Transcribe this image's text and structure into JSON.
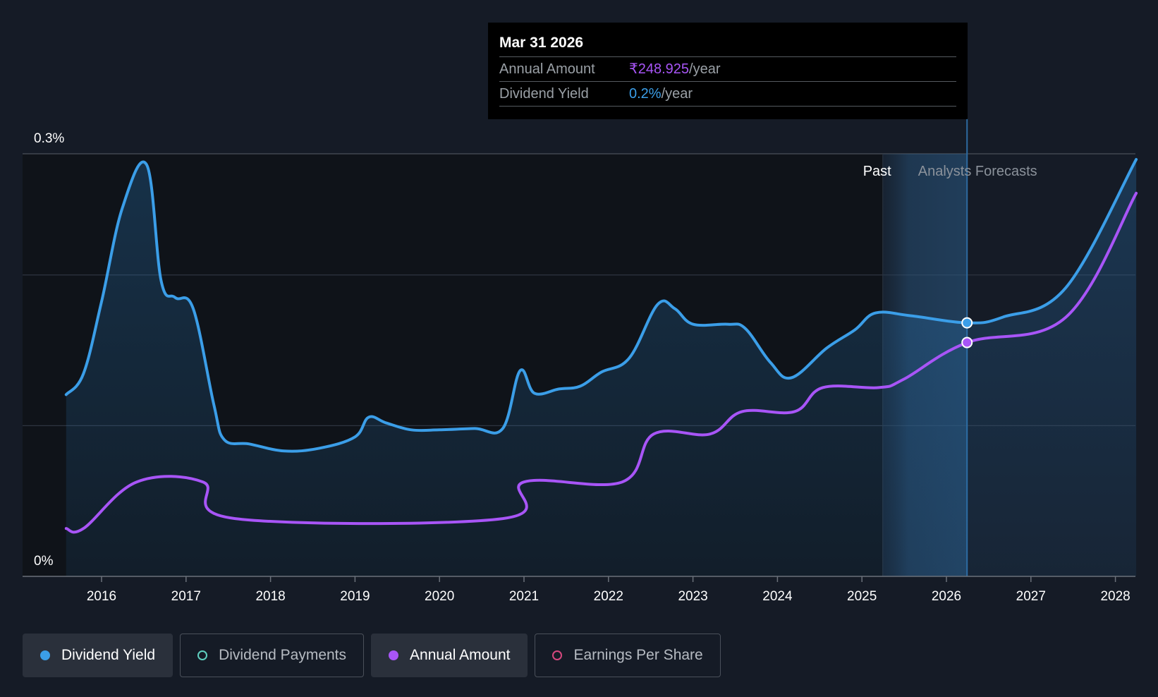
{
  "tooltip": {
    "date": "Mar 31 2026",
    "annual_amount_label": "Annual Amount",
    "annual_amount_value": "₹248.925",
    "annual_amount_unit": "/year",
    "dividend_yield_label": "Dividend Yield",
    "dividend_yield_value": "0.2%",
    "dividend_yield_unit": "/year"
  },
  "regions": {
    "past_label": "Past",
    "forecast_label": "Analysts Forecasts"
  },
  "legend": [
    {
      "label": "Dividend Yield",
      "color": "#3b9ee8",
      "active": true,
      "filled": true
    },
    {
      "label": "Dividend Payments",
      "color": "#5fd0c0",
      "active": false,
      "filled": false
    },
    {
      "label": "Annual Amount",
      "color": "#a855f7",
      "active": true,
      "filled": true
    },
    {
      "label": "Earnings Per Share",
      "color": "#d6487e",
      "active": false,
      "filled": false
    }
  ],
  "chart_data": {
    "type": "line",
    "x_axis": {
      "type": "time",
      "min": "2015-01-01",
      "max": "2028-03-31",
      "ticks": [
        "2016",
        "2017",
        "2018",
        "2019",
        "2020",
        "2021",
        "2022",
        "2023",
        "2024",
        "2025",
        "2026",
        "2027",
        "2028"
      ]
    },
    "y_axis": {
      "min": 0,
      "max": 0.3,
      "labeled_ticks": [
        {
          "value": 0,
          "label": "0%"
        },
        {
          "value": 0.3,
          "label": "0.3%"
        }
      ],
      "gridlines": [
        0.107,
        0.214,
        0.3
      ]
    },
    "forecast_start": "2025-04-01",
    "highlight_date": "2026-03-31",
    "series": [
      {
        "name": "Dividend Yield",
        "color": "#3b9ee8",
        "unit": "%",
        "fill": true,
        "points": [
          [
            "2015-08-01",
            0.129
          ],
          [
            "2015-10-15",
            0.144
          ],
          [
            "2016-01-01",
            0.195
          ],
          [
            "2016-04-01",
            0.262
          ],
          [
            "2016-07-15",
            0.292
          ],
          [
            "2016-09-15",
            0.21
          ],
          [
            "2016-11-15",
            0.198
          ],
          [
            "2017-02-01",
            0.19
          ],
          [
            "2017-05-01",
            0.122
          ],
          [
            "2017-06-15",
            0.097
          ],
          [
            "2017-10-01",
            0.094
          ],
          [
            "2018-03-01",
            0.089
          ],
          [
            "2018-08-01",
            0.091
          ],
          [
            "2019-01-01",
            0.099
          ],
          [
            "2019-03-01",
            0.113
          ],
          [
            "2019-05-15",
            0.109
          ],
          [
            "2019-09-01",
            0.104
          ],
          [
            "2019-12-31",
            0.104
          ],
          [
            "2020-06-01",
            0.105
          ],
          [
            "2020-10-01",
            0.105
          ],
          [
            "2020-12-15",
            0.146
          ],
          [
            "2021-02-15",
            0.13
          ],
          [
            "2021-06-01",
            0.133
          ],
          [
            "2021-09-01",
            0.135
          ],
          [
            "2021-12-01",
            0.145
          ],
          [
            "2022-04-01",
            0.155
          ],
          [
            "2022-08-01",
            0.193
          ],
          [
            "2022-10-15",
            0.19
          ],
          [
            "2023-01-01",
            0.179
          ],
          [
            "2023-06-01",
            0.179
          ],
          [
            "2023-08-15",
            0.176
          ],
          [
            "2023-12-01",
            0.152
          ],
          [
            "2024-03-01",
            0.141
          ],
          [
            "2024-08-01",
            0.162
          ],
          [
            "2024-12-01",
            0.175
          ],
          [
            "2025-03-01",
            0.187
          ],
          [
            "2025-08-01",
            0.185
          ],
          [
            "2026-03-31",
            0.18
          ],
          [
            "2026-09-01",
            0.184
          ],
          [
            "2027-06-01",
            0.205
          ],
          [
            "2028-03-31",
            0.296
          ]
        ]
      },
      {
        "name": "Annual Amount",
        "color": "#a855f7",
        "unit": "₹",
        "fill": false,
        "points": [
          [
            "2015-08-01",
            0.034
          ],
          [
            "2015-10-15",
            0.034
          ],
          [
            "2016-06-01",
            0.067
          ],
          [
            "2017-03-15",
            0.067
          ],
          [
            "2017-08-01",
            0.041
          ],
          [
            "2020-10-01",
            0.041
          ],
          [
            "2021-01-01",
            0.067
          ],
          [
            "2022-03-01",
            0.067
          ],
          [
            "2022-07-15",
            0.101
          ],
          [
            "2023-03-15",
            0.101
          ],
          [
            "2023-08-01",
            0.117
          ],
          [
            "2024-03-15",
            0.117
          ],
          [
            "2024-07-15",
            0.134
          ],
          [
            "2025-03-15",
            0.134
          ],
          [
            "2025-07-01",
            0.14
          ],
          [
            "2026-03-31",
            0.166
          ],
          [
            "2027-06-01",
            0.184
          ],
          [
            "2028-03-31",
            0.272
          ]
        ]
      }
    ]
  }
}
